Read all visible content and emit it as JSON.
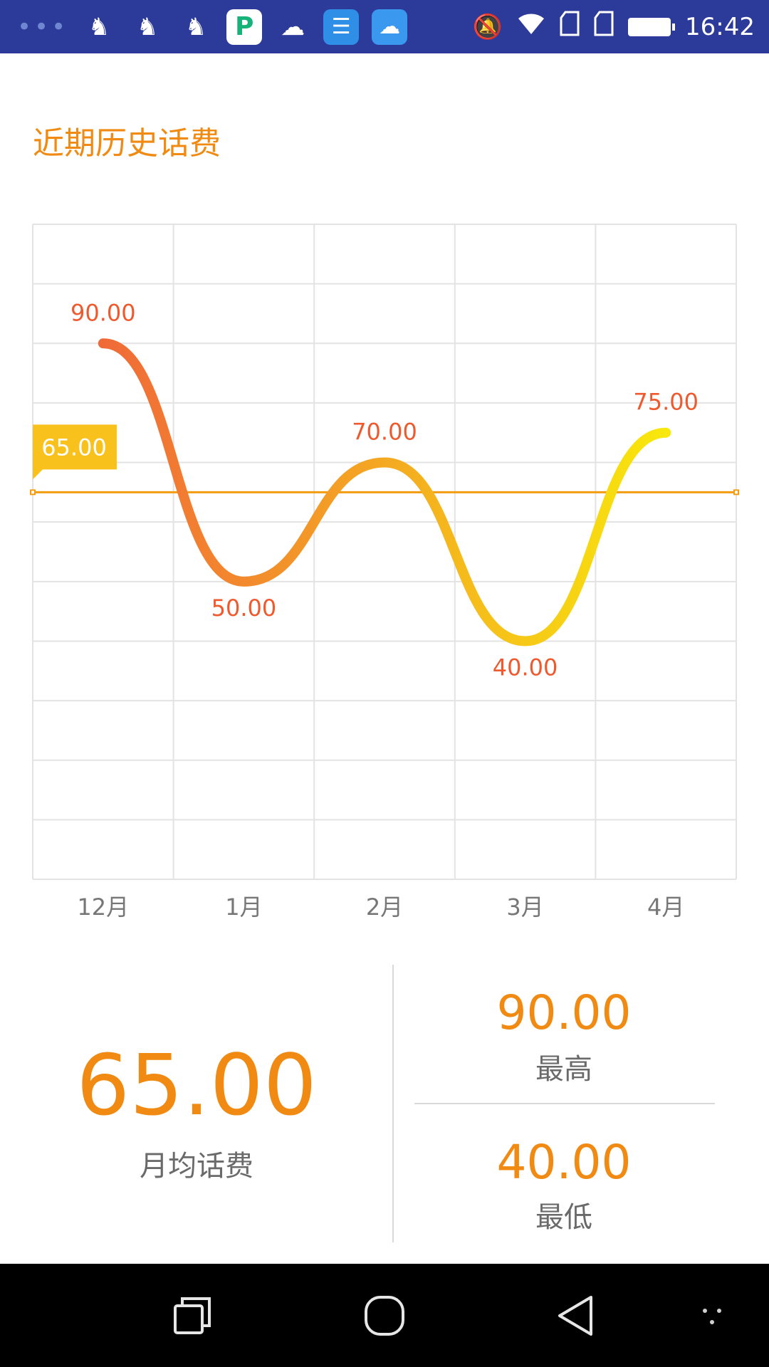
{
  "status_bar": {
    "time": "16:42",
    "notification_icons": [
      "more-dots-icon",
      "uc-browser-icon",
      "uc-browser-icon",
      "uc-browser-icon",
      "p-app-icon",
      "cloud-icon",
      "doc-app-icon",
      "weather-icon"
    ],
    "system_icons": [
      "mute-icon",
      "wifi-icon",
      "sim1-icon",
      "sim2-icon",
      "battery-icon"
    ]
  },
  "page": {
    "title": "近期历史话费"
  },
  "chart_data": {
    "type": "line",
    "categories": [
      "12月",
      "1月",
      "2月",
      "3月",
      "4月"
    ],
    "values": [
      90.0,
      50.0,
      70.0,
      40.0,
      75.0
    ],
    "value_labels": [
      "90.00",
      "50.00",
      "70.00",
      "40.00",
      "75.00"
    ],
    "average": 65.0,
    "average_label": "65.00",
    "ylim": [
      0,
      110
    ],
    "grid": true,
    "line_gradient": [
      "#f06a38",
      "#f8e80c"
    ],
    "average_line_color": "#f39c12",
    "label_color": "#ee5a2e"
  },
  "stats": {
    "average_value": "65.00",
    "average_label": "月均话费",
    "max_value": "90.00",
    "max_label": "最高",
    "min_value": "40.00",
    "min_label": "最低"
  },
  "colors": {
    "accent": "#f08a12",
    "status_bar": "#2c3a9a",
    "label_grey": "#6a6a6a"
  },
  "nav_bar": {
    "buttons": [
      "recents-icon",
      "home-icon",
      "back-icon",
      "menu-dots-icon"
    ]
  }
}
